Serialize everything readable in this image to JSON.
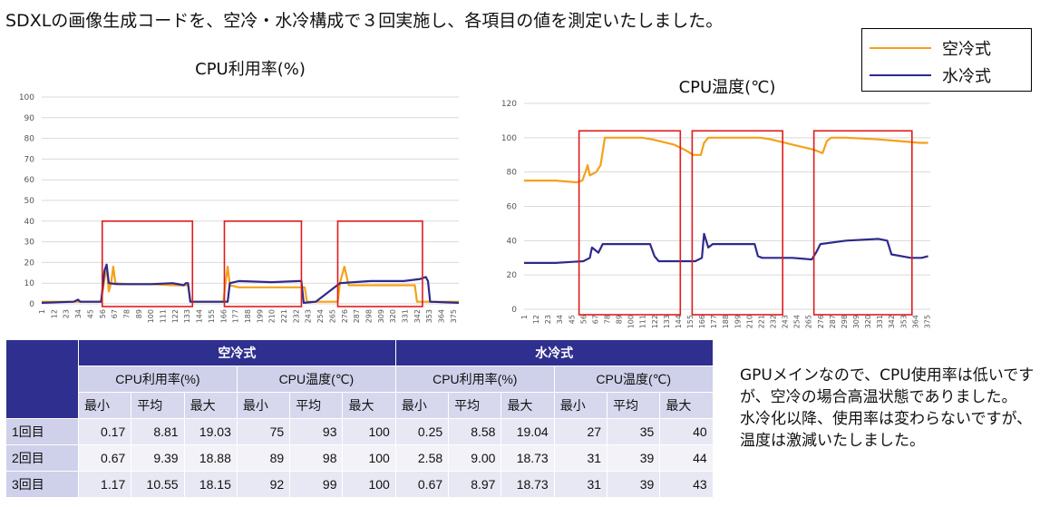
{
  "heading": "SDXLの画像生成コードを、空冷・水冷構成で３回実施し、各項目の値を測定いたしました。",
  "legend": {
    "items": [
      {
        "label": "空冷式",
        "color": "#f5a01a"
      },
      {
        "label": "水冷式",
        "color": "#2e2a8c"
      }
    ]
  },
  "chart_data": [
    {
      "type": "line",
      "title": "CPU利用率(%)",
      "ylim": [
        0,
        100
      ],
      "yticks": [
        0,
        10,
        20,
        30,
        40,
        50,
        60,
        70,
        80,
        90,
        100
      ],
      "xticks": [
        "1",
        "12",
        "23",
        "34",
        "45",
        "56",
        "67",
        "78",
        "89",
        "100",
        "111",
        "122",
        "133",
        "144",
        "155",
        "166",
        "177",
        "188",
        "199",
        "210",
        "221",
        "232",
        "243",
        "254",
        "265",
        "276",
        "287",
        "298",
        "309",
        "320",
        "331",
        "342",
        "353",
        "364",
        "375"
      ],
      "xmax": 380,
      "highlight_boxes": [
        [
          56,
          138,
          0,
          40
        ],
        [
          167,
          237,
          0,
          40
        ],
        [
          270,
          347,
          0,
          40
        ]
      ],
      "series": [
        {
          "name": "空冷式",
          "color": "#f5a01a",
          "points": [
            [
              1,
              1
            ],
            [
              50,
              1
            ],
            [
              55,
              1
            ],
            [
              58,
              12
            ],
            [
              60,
              18
            ],
            [
              62,
              6
            ],
            [
              64,
              10
            ],
            [
              66,
              18
            ],
            [
              68,
              10
            ],
            [
              80,
              9.5
            ],
            [
              100,
              9.5
            ],
            [
              120,
              9
            ],
            [
              132,
              9
            ],
            [
              134,
              9
            ],
            [
              136,
              1
            ],
            [
              166,
              1
            ],
            [
              168,
              10
            ],
            [
              170,
              18
            ],
            [
              172,
              9
            ],
            [
              180,
              8
            ],
            [
              190,
              8
            ],
            [
              230,
              8
            ],
            [
              240,
              8
            ],
            [
              242,
              1
            ],
            [
              270,
              1
            ],
            [
              272,
              10
            ],
            [
              276,
              18
            ],
            [
              280,
              9
            ],
            [
              300,
              9
            ],
            [
              320,
              9
            ],
            [
              338,
              9
            ],
            [
              340,
              9
            ],
            [
              342,
              1
            ],
            [
              380,
              1
            ]
          ]
        },
        {
          "name": "水冷式",
          "color": "#2e2a8c",
          "points": [
            [
              1,
              0.5
            ],
            [
              30,
              1
            ],
            [
              34,
              2
            ],
            [
              36,
              1
            ],
            [
              55,
              1
            ],
            [
              58,
              16
            ],
            [
              60,
              19
            ],
            [
              62,
              10
            ],
            [
              70,
              9.5
            ],
            [
              100,
              9.5
            ],
            [
              120,
              10
            ],
            [
              130,
              9
            ],
            [
              132,
              10
            ],
            [
              134,
              10
            ],
            [
              136,
              1
            ],
            [
              170,
              1
            ],
            [
              172,
              10
            ],
            [
              180,
              11
            ],
            [
              210,
              10.5
            ],
            [
              235,
              11
            ],
            [
              237,
              11
            ],
            [
              239,
              0.5
            ],
            [
              250,
              1
            ],
            [
              272,
              10
            ],
            [
              300,
              11
            ],
            [
              330,
              11
            ],
            [
              345,
              12
            ],
            [
              350,
              13
            ],
            [
              352,
              11
            ],
            [
              354,
              1
            ],
            [
              380,
              0.5
            ]
          ]
        }
      ]
    },
    {
      "type": "line",
      "title": "CPU温度(℃)",
      "ylim": [
        0,
        120
      ],
      "yticks": [
        0,
        20,
        40,
        60,
        80,
        100,
        120
      ],
      "xticks": [
        "1",
        "12",
        "23",
        "34",
        "45",
        "56",
        "67",
        "78",
        "89",
        "100",
        "111",
        "122",
        "133",
        "144",
        "155",
        "166",
        "177",
        "188",
        "199",
        "210",
        "221",
        "232",
        "243",
        "254",
        "265",
        "276",
        "287",
        "298",
        "309",
        "320",
        "331",
        "342",
        "353",
        "364",
        "375"
      ],
      "xmax": 378,
      "highlight_boxes": [
        [
          52,
          146,
          0,
          104
        ],
        [
          157,
          241,
          0,
          104
        ],
        [
          270,
          361,
          0,
          104
        ]
      ],
      "series": [
        {
          "name": "空冷式",
          "color": "#f5a01a",
          "points": [
            [
              1,
              75
            ],
            [
              30,
              75
            ],
            [
              50,
              74
            ],
            [
              55,
              75
            ],
            [
              58,
              80
            ],
            [
              60,
              84
            ],
            [
              62,
              78
            ],
            [
              68,
              80
            ],
            [
              72,
              84
            ],
            [
              76,
              100
            ],
            [
              100,
              100
            ],
            [
              110,
              100
            ],
            [
              120,
              99
            ],
            [
              140,
              96
            ],
            [
              150,
              93
            ],
            [
              158,
              90
            ],
            [
              165,
              90
            ],
            [
              168,
              97
            ],
            [
              172,
              100
            ],
            [
              200,
              100
            ],
            [
              220,
              100
            ],
            [
              230,
              99
            ],
            [
              250,
              96
            ],
            [
              270,
              93
            ],
            [
              278,
              91
            ],
            [
              282,
              98
            ],
            [
              286,
              100
            ],
            [
              300,
              100
            ],
            [
              330,
              99
            ],
            [
              350,
              98
            ],
            [
              368,
              97
            ],
            [
              376,
              97
            ]
          ]
        },
        {
          "name": "水冷式",
          "color": "#2e2a8c",
          "points": [
            [
              1,
              27
            ],
            [
              30,
              27
            ],
            [
              56,
              28
            ],
            [
              62,
              30
            ],
            [
              64,
              36
            ],
            [
              70,
              33
            ],
            [
              74,
              38
            ],
            [
              100,
              38
            ],
            [
              118,
              38
            ],
            [
              122,
              31
            ],
            [
              126,
              28
            ],
            [
              160,
              28
            ],
            [
              166,
              30
            ],
            [
              168,
              44
            ],
            [
              172,
              36
            ],
            [
              176,
              38
            ],
            [
              200,
              38
            ],
            [
              215,
              38
            ],
            [
              218,
              31
            ],
            [
              222,
              30
            ],
            [
              250,
              30
            ],
            [
              268,
              29
            ],
            [
              272,
              33
            ],
            [
              276,
              38
            ],
            [
              300,
              40
            ],
            [
              330,
              41
            ],
            [
              338,
              40
            ],
            [
              342,
              32
            ],
            [
              360,
              30
            ],
            [
              370,
              30
            ],
            [
              376,
              31
            ]
          ]
        }
      ]
    }
  ],
  "table": {
    "groups": [
      "空冷式",
      "水冷式"
    ],
    "metrics": [
      "CPU利用率(%)",
      "CPU温度(℃)",
      "CPU利用率(%)",
      "CPU温度(℃)"
    ],
    "subheaders": [
      "最小",
      "平均",
      "最大",
      "最小",
      "平均",
      "最大",
      "最小",
      "平均",
      "最大",
      "最小",
      "平均",
      "最大"
    ],
    "rows": [
      {
        "label": "1回目",
        "values": [
          "0.17",
          "8.81",
          "19.03",
          "75",
          "93",
          "100",
          "0.25",
          "8.58",
          "19.04",
          "27",
          "35",
          "40"
        ]
      },
      {
        "label": "2回目",
        "values": [
          "0.67",
          "9.39",
          "18.88",
          "89",
          "98",
          "100",
          "2.58",
          "9.00",
          "18.73",
          "31",
          "39",
          "44"
        ]
      },
      {
        "label": "3回目",
        "values": [
          "1.17",
          "10.55",
          "18.15",
          "92",
          "99",
          "100",
          "0.67",
          "8.97",
          "18.73",
          "31",
          "39",
          "43"
        ]
      }
    ]
  },
  "note": {
    "line1": "GPUメインなので、CPU使用率は低いですが、空冷の場合高温状態でありました。",
    "line2": "水冷化以降、使用率は変わらないですが、温度は激減いたしました。"
  }
}
